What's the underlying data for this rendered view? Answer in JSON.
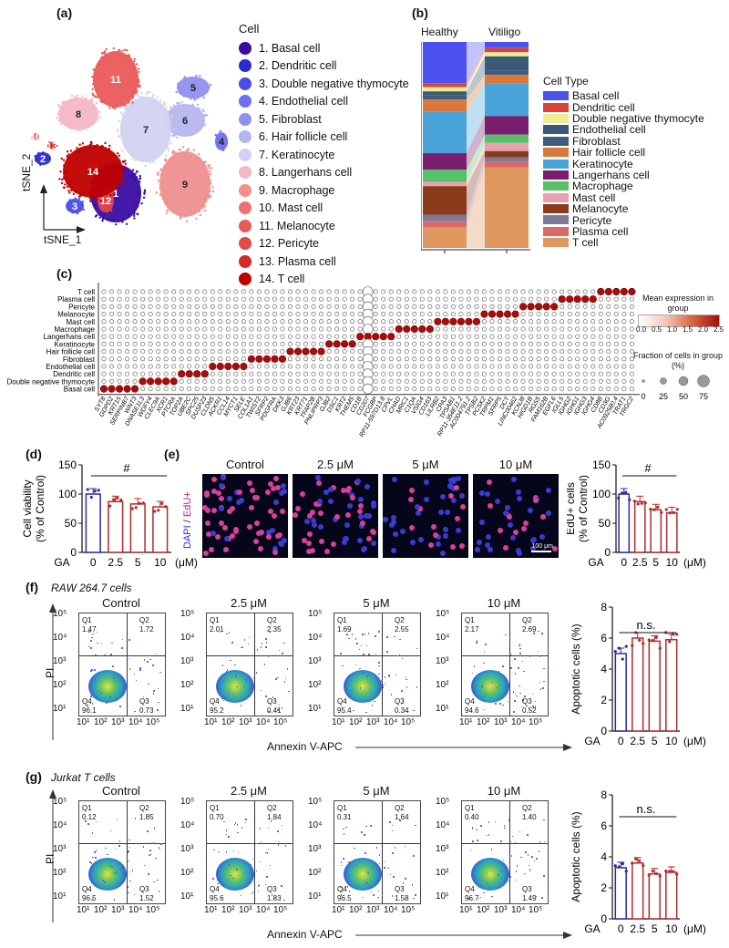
{
  "panel_a": {
    "label": "(a)",
    "legend_title": "Cell",
    "cells": [
      {
        "label": "1. Basal cell",
        "color": "#3a0ca3"
      },
      {
        "label": "2. Dendritic cell",
        "color": "#2a2ad1"
      },
      {
        "label": "3. Double negative thymocyte",
        "color": "#4b4be8"
      },
      {
        "label": "4. Endothelial cell",
        "color": "#6e6ef0"
      },
      {
        "label": "5. Fibroblast",
        "color": "#9090ee"
      },
      {
        "label": "6. Hair follicle cell",
        "color": "#b6b6ee"
      },
      {
        "label": "7. Keratinocyte",
        "color": "#d2d2f2"
      },
      {
        "label": "8. Langerhans cell",
        "color": "#f4b8c4"
      },
      {
        "label": "9. Macrophage",
        "color": "#ef8f8f"
      },
      {
        "label": "10. Mast cell",
        "color": "#ee7070"
      },
      {
        "label": "11. Melanocyte",
        "color": "#ea5a5a"
      },
      {
        "label": "12. Pericyte",
        "color": "#e44848"
      },
      {
        "label": "13. Plasma cell",
        "color": "#d62828"
      },
      {
        "label": "14. T cell",
        "color": "#c00000"
      }
    ],
    "cluster_numbers": [
      "1",
      "2",
      "3",
      "4",
      "5",
      "6",
      "7",
      "8",
      "9",
      "10",
      "11",
      "12",
      "13",
      "14"
    ],
    "axis_y": "tSNE_2",
    "axis_x": "tSNE_1"
  },
  "panel_b": {
    "label": "(b)",
    "group1": "Healthy",
    "group2": "Vitiligo",
    "legend_title": "Cell Type",
    "types": [
      {
        "label": "Basal cell",
        "color": "#4c52f0"
      },
      {
        "label": "Dendritic cell",
        "color": "#d9433a"
      },
      {
        "label": "Double negative thymocyte",
        "color": "#f0ee95"
      },
      {
        "label": "Endothelial cell",
        "color": "#3a5a78"
      },
      {
        "label": "Fibroblast",
        "color": "#3f5c80"
      },
      {
        "label": "Hair follicle cell",
        "color": "#d9783a"
      },
      {
        "label": "Keratinocyte",
        "color": "#4aa3d8"
      },
      {
        "label": "Langerhans cell",
        "color": "#7a1f6e"
      },
      {
        "label": "Macrophage",
        "color": "#57c06a"
      },
      {
        "label": "Mast cell",
        "color": "#e8a0b0"
      },
      {
        "label": "Melanocyte",
        "color": "#8a3b1c"
      },
      {
        "label": "Pericyte",
        "color": "#7b7a96"
      },
      {
        "label": "Plasma cell",
        "color": "#d96a6a"
      },
      {
        "label": "T cell",
        "color": "#e0975f"
      }
    ],
    "healthy_fractions": [
      0.2,
      0.02,
      0.02,
      0.02,
      0.02,
      0.06,
      0.2,
      0.08,
      0.06,
      0.02,
      0.14,
      0.03,
      0.03,
      0.1
    ],
    "vitiligo_fractions": [
      0.03,
      0.02,
      0.02,
      0.07,
      0.02,
      0.04,
      0.16,
      0.09,
      0.04,
      0.04,
      0.03,
      0.02,
      0.03,
      0.39
    ]
  },
  "panel_c": {
    "label": "(c)",
    "rows": [
      "T cell",
      "Plasma cell",
      "Pericyte",
      "Melanocyte",
      "Mast cell",
      "Macrophage",
      "Langerhans cell",
      "Keratinocyte",
      "Hair follicle cell",
      "Fibroblast",
      "Endothelial cell",
      "Dendritic cell",
      "Double negative thymocyte",
      "Basal cell"
    ],
    "genes": [
      "SYT8",
      "GDPD2",
      "KRT15",
      "SERPINB7",
      "WNT3",
      "DNASE1L3",
      "WDFY4",
      "CLEC9A",
      "XCR1",
      "PTCRA",
      "TOP2A",
      "UBE2C",
      "SPC25",
      "DUSP23",
      "CLDN5",
      "ACKR1",
      "CCL14",
      "MYCT1",
      "SELE",
      "COL1A1",
      "TWIST2",
      "SFRP2",
      "PDGFRA",
      "DKK3",
      "GJB6",
      "KRT23",
      "KRT71",
      "TFAP2B",
      "PNLIPRP3",
      "GJB2",
      "DSC1",
      "KRT2",
      "THEM5",
      "CD1B",
      "CD207",
      "FCGBP",
      "RP11-597D13.8",
      "CPVL",
      "CHAD",
      "MRC1",
      "C1QA",
      "VSIG4",
      "CD163",
      "LILRB2",
      "CPA3",
      "TPSAB1",
      "RP11-354E11.2",
      "AC004791.2",
      "TPSB2",
      "PCSK2",
      "TRPM1",
      "SFRP5",
      "DCT",
      "LINC00462",
      "KCNJ8",
      "HIGD1B",
      "RGS5",
      "FAM162B",
      "EGFL6",
      "IGLL5",
      "IGHG2",
      "IGHG1",
      "IGHG3",
      "IGHG4",
      "CD8B",
      "CD3G",
      "AC092580.4",
      "TRAT1",
      "TRGC2"
    ],
    "legend_title": "Mean expression in group",
    "color_ticks": [
      "0.0",
      "0.5",
      "1.0",
      "1.5",
      "2.0",
      "2.5"
    ],
    "size_title": "Fraction of cells in group (%)",
    "size_ticks": [
      "0",
      "25",
      "50",
      "75"
    ]
  },
  "panel_d": {
    "label": "(d)",
    "ylabel1": "Cell viability",
    "ylabel2": "(% of Control)",
    "yticks": [
      "0",
      "50",
      "100",
      "150"
    ],
    "xlabel": "GA",
    "categories": [
      "0",
      "2.5",
      "5",
      "10"
    ],
    "unit": "(μM)",
    "sig": "#"
  },
  "panel_e": {
    "label": "(e)",
    "images": [
      "Control",
      "2.5 μM",
      "5 μM",
      "10 μM"
    ],
    "stain_a": "DAPI",
    "stain_sep": " / ",
    "stain_b": "EdU+",
    "scale": "100 μm",
    "ylabel1": "EdU+ cells",
    "ylabel2": "(% of Control)",
    "yticks": [
      "0",
      "50",
      "100",
      "150"
    ],
    "xlabel": "GA",
    "categories": [
      "0",
      "2.5",
      "5",
      "10"
    ],
    "unit": "(μM)",
    "sig": "#"
  },
  "panel_f": {
    "label": "(f)",
    "title": "RAW 264.7 cells",
    "plots": [
      {
        "title": "Control",
        "q1": "1.47",
        "q2": "1.72",
        "q3": "0.73",
        "q4": "96.1"
      },
      {
        "title": "2.5 μM",
        "q1": "2.01",
        "q2": "2.35",
        "q3": "0.41",
        "q4": "95.2"
      },
      {
        "title": "5 μM",
        "q1": "1.69",
        "q2": "2.55",
        "q3": "0.34",
        "q4": "95.4"
      },
      {
        "title": "10 μM",
        "q1": "2.17",
        "q2": "2.69",
        "q3": "0.52",
        "q4": "94.6"
      }
    ],
    "ylabel": "PI",
    "xlabel": "Annexin V-APC",
    "bar_ylabel": "Apoptotic cells (%)",
    "bar_yticks": [
      "0",
      "2",
      "4",
      "6",
      "8"
    ],
    "sig": "n.s.",
    "xlabel_ga": "GA",
    "categories": [
      "0",
      "2.5",
      "5",
      "10"
    ],
    "unit": "(μM)"
  },
  "panel_g": {
    "label": "(g)",
    "title": "Jurkat T cells",
    "plots": [
      {
        "title": "Control",
        "q1": "0.12",
        "q2": "1.85",
        "q3": "1.52",
        "q4": "96.5"
      },
      {
        "title": "2.5 μM",
        "q1": "0.70",
        "q2": "1.84",
        "q3": "1.83",
        "q4": "95.6"
      },
      {
        "title": "5 μM",
        "q1": "0.31",
        "q2": "1.64",
        "q3": "1.58",
        "q4": "96.5"
      },
      {
        "title": "10 μM",
        "q1": "0.40",
        "q2": "1.40",
        "q3": "1.49",
        "q4": "96.7"
      }
    ],
    "ylabel": "PI",
    "xlabel": "Annexin V-APC",
    "bar_ylabel": "Apoptotic cells (%)",
    "bar_yticks": [
      "0",
      "2",
      "4",
      "6",
      "8"
    ],
    "sig": "n.s.",
    "xlabel_ga": "GA",
    "categories": [
      "0",
      "2.5",
      "5",
      "10"
    ],
    "unit": "(μM)"
  },
  "flow_labels": {
    "q1": "Q1",
    "q2": "Q2",
    "q3": "Q3",
    "q4": "Q4"
  },
  "flow_ticks": [
    "10¹",
    "10²",
    "10³",
    "10⁴",
    "10⁵"
  ],
  "chart_data": [
    {
      "type": "bar",
      "title": "Cell viability",
      "categories": [
        "0",
        "2.5",
        "5",
        "10"
      ],
      "values": [
        100,
        87,
        83,
        78
      ],
      "ylim": [
        0,
        150
      ],
      "xlabel": "GA (μM)",
      "ylabel": "Cell viability (% of Control)"
    },
    {
      "type": "bar",
      "title": "EdU+ cells",
      "categories": [
        "0",
        "2.5",
        "5",
        "10"
      ],
      "values": [
        100,
        87,
        73,
        68
      ],
      "ylim": [
        0,
        150
      ],
      "xlabel": "GA (μM)",
      "ylabel": "EdU+ cells (% of Control)"
    },
    {
      "type": "bar",
      "title": "RAW 264.7 apoptotic cells",
      "categories": [
        "0",
        "2.5",
        "5",
        "10"
      ],
      "values": [
        5.0,
        6.0,
        5.8,
        5.9
      ],
      "ylim": [
        0,
        8
      ],
      "xlabel": "GA (μM)",
      "ylabel": "Apoptotic cells (%)"
    },
    {
      "type": "bar",
      "title": "Jurkat T apoptotic cells",
      "categories": [
        "0",
        "2.5",
        "5",
        "10"
      ],
      "values": [
        3.3,
        3.6,
        2.9,
        3.0
      ],
      "ylim": [
        0,
        8
      ],
      "xlabel": "GA (μM)",
      "ylabel": "Apoptotic cells (%)"
    }
  ]
}
